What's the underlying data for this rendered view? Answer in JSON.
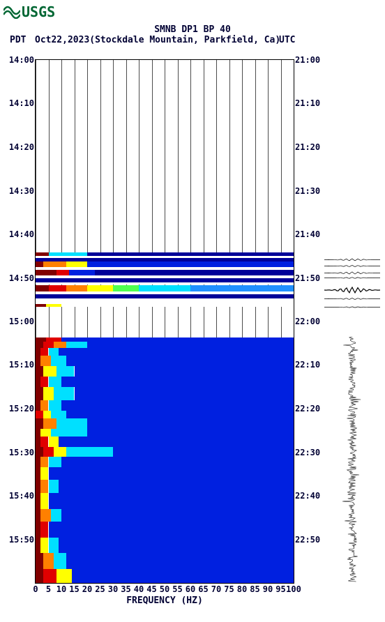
{
  "logo_text": "USGS",
  "title": "SMNB DP1 BP 40",
  "timezone_left": "PDT",
  "date": "Oct22,2023(Stockdale Mountain, Parkfield, Ca)",
  "timezone_right": "UTC",
  "xaxis_title": "FREQUENCY (HZ)",
  "plot": {
    "background_color": "#ffffff",
    "grid_color": "#000000",
    "text_color": "#000033",
    "xlim": [
      0,
      100
    ],
    "xtick_step": 5,
    "xticks": [
      "0",
      "5",
      "10",
      "15",
      "20",
      "25",
      "30",
      "35",
      "40",
      "45",
      "50",
      "55",
      "60",
      "65",
      "70",
      "75",
      "80",
      "85",
      "90",
      "95",
      "100"
    ],
    "y_left_ticks": [
      {
        "t": 0.0,
        "label": "14:00"
      },
      {
        "t": 0.0833,
        "label": "14:10"
      },
      {
        "t": 0.1667,
        "label": "14:20"
      },
      {
        "t": 0.25,
        "label": "14:30"
      },
      {
        "t": 0.3333,
        "label": "14:40"
      },
      {
        "t": 0.4167,
        "label": "14:50"
      },
      {
        "t": 0.5,
        "label": "15:00"
      },
      {
        "t": 0.5833,
        "label": "15:10"
      },
      {
        "t": 0.6667,
        "label": "15:20"
      },
      {
        "t": 0.75,
        "label": "15:30"
      },
      {
        "t": 0.8333,
        "label": "15:40"
      },
      {
        "t": 0.9167,
        "label": "15:50"
      }
    ],
    "y_right_ticks": [
      {
        "t": 0.0,
        "label": "21:00"
      },
      {
        "t": 0.0833,
        "label": "21:10"
      },
      {
        "t": 0.1667,
        "label": "21:20"
      },
      {
        "t": 0.25,
        "label": "21:30"
      },
      {
        "t": 0.3333,
        "label": "21:40"
      },
      {
        "t": 0.4167,
        "label": "21:50"
      },
      {
        "t": 0.5,
        "label": "22:00"
      },
      {
        "t": 0.5833,
        "label": "22:10"
      },
      {
        "t": 0.6667,
        "label": "22:20"
      },
      {
        "t": 0.75,
        "label": "22:30"
      },
      {
        "t": 0.8333,
        "label": "22:40"
      },
      {
        "t": 0.9167,
        "label": "22:50"
      }
    ]
  },
  "colors": {
    "darkblue": "#000099",
    "blue": "#0020e0",
    "medblue": "#0050ff",
    "lightblue": "#2090ff",
    "cyan": "#00e0ff",
    "green": "#50ff50",
    "yellow": "#ffff00",
    "orange": "#ff8000",
    "red": "#e00000",
    "darkred": "#800000",
    "white": "#ffffff"
  },
  "bands": [
    {
      "t": 0.368,
      "h": 0.007,
      "segs": [
        {
          "x": 0,
          "w": 5,
          "c": "darkred"
        },
        {
          "x": 5,
          "w": 15,
          "c": "cyan"
        },
        {
          "x": 20,
          "w": 80,
          "c": "darkblue"
        }
      ]
    },
    {
      "t": 0.375,
      "h": 0.004,
      "segs": [
        {
          "x": 0,
          "w": 100,
          "c": "white"
        }
      ]
    },
    {
      "t": 0.379,
      "h": 0.007,
      "segs": [
        {
          "x": 0,
          "w": 100,
          "c": "darkblue"
        }
      ]
    },
    {
      "t": 0.386,
      "h": 0.01,
      "segs": [
        {
          "x": 0,
          "w": 3,
          "c": "darkred"
        },
        {
          "x": 3,
          "w": 9,
          "c": "orange"
        },
        {
          "x": 12,
          "w": 8,
          "c": "yellow"
        },
        {
          "x": 20,
          "w": 80,
          "c": "blue"
        }
      ]
    },
    {
      "t": 0.396,
      "h": 0.005,
      "segs": [
        {
          "x": 0,
          "w": 100,
          "c": "white"
        }
      ]
    },
    {
      "t": 0.401,
      "h": 0.011,
      "segs": [
        {
          "x": 0,
          "w": 8,
          "c": "darkred"
        },
        {
          "x": 8,
          "w": 5,
          "c": "red"
        },
        {
          "x": 13,
          "w": 10,
          "c": "blue"
        },
        {
          "x": 23,
          "w": 77,
          "c": "darkblue"
        }
      ]
    },
    {
      "t": 0.412,
      "h": 0.005,
      "segs": [
        {
          "x": 0,
          "w": 100,
          "c": "white"
        }
      ]
    },
    {
      "t": 0.417,
      "h": 0.009,
      "segs": [
        {
          "x": 0,
          "w": 100,
          "c": "darkblue"
        }
      ]
    },
    {
      "t": 0.426,
      "h": 0.004,
      "segs": [
        {
          "x": 0,
          "w": 100,
          "c": "white"
        }
      ]
    },
    {
      "t": 0.43,
      "h": 0.012,
      "segs": [
        {
          "x": 0,
          "w": 5,
          "c": "darkred"
        },
        {
          "x": 5,
          "w": 7,
          "c": "red"
        },
        {
          "x": 12,
          "w": 8,
          "c": "orange"
        },
        {
          "x": 20,
          "w": 10,
          "c": "yellow"
        },
        {
          "x": 30,
          "w": 10,
          "c": "green"
        },
        {
          "x": 40,
          "w": 20,
          "c": "cyan"
        },
        {
          "x": 60,
          "w": 40,
          "c": "lightblue"
        }
      ]
    },
    {
      "t": 0.442,
      "h": 0.006,
      "segs": [
        {
          "x": 0,
          "w": 100,
          "c": "white"
        }
      ]
    },
    {
      "t": 0.448,
      "h": 0.008,
      "segs": [
        {
          "x": 0,
          "w": 100,
          "c": "darkblue"
        }
      ]
    },
    {
      "t": 0.456,
      "h": 0.01,
      "segs": [
        {
          "x": 0,
          "w": 100,
          "c": "white"
        }
      ]
    },
    {
      "t": 0.466,
      "h": 0.006,
      "segs": [
        {
          "x": 0,
          "w": 4,
          "c": "darkred"
        },
        {
          "x": 4,
          "w": 6,
          "c": "yellow"
        },
        {
          "x": 10,
          "w": 90,
          "c": "white"
        }
      ]
    }
  ],
  "spectro_block": {
    "t0": 0.53,
    "t1": 1.0,
    "rows": [
      {
        "t": 0.53,
        "h": 0.008,
        "segs": [
          {
            "x": 0,
            "w": 4,
            "c": "darkred"
          },
          {
            "x": 4,
            "w": 6,
            "c": "red"
          },
          {
            "x": 10,
            "w": 90,
            "c": "blue"
          }
        ]
      },
      {
        "t": 0.538,
        "h": 0.012,
        "segs": [
          {
            "x": 0,
            "w": 3,
            "c": "darkred"
          },
          {
            "x": 3,
            "w": 4,
            "c": "red"
          },
          {
            "x": 7,
            "w": 5,
            "c": "orange"
          },
          {
            "x": 12,
            "w": 8,
            "c": "cyan"
          },
          {
            "x": 20,
            "w": 80,
            "c": "blue"
          }
        ]
      },
      {
        "t": 0.55,
        "h": 0.015,
        "segs": [
          {
            "x": 0,
            "w": 2,
            "c": "darkred"
          },
          {
            "x": 2,
            "w": 3,
            "c": "red"
          },
          {
            "x": 5,
            "w": 4,
            "c": "cyan"
          },
          {
            "x": 9,
            "w": 91,
            "c": "blue"
          }
        ]
      },
      {
        "t": 0.565,
        "h": 0.02,
        "segs": [
          {
            "x": 0,
            "w": 2,
            "c": "darkred"
          },
          {
            "x": 2,
            "w": 4,
            "c": "orange"
          },
          {
            "x": 6,
            "w": 6,
            "c": "cyan"
          },
          {
            "x": 12,
            "w": 88,
            "c": "blue"
          }
        ]
      },
      {
        "t": 0.585,
        "h": 0.02,
        "segs": [
          {
            "x": 0,
            "w": 3,
            "c": "darkred"
          },
          {
            "x": 3,
            "w": 5,
            "c": "yellow"
          },
          {
            "x": 8,
            "w": 7,
            "c": "cyan"
          },
          {
            "x": 15,
            "w": 85,
            "c": "blue"
          }
        ]
      },
      {
        "t": 0.605,
        "h": 0.02,
        "segs": [
          {
            "x": 0,
            "w": 2,
            "c": "darkred"
          },
          {
            "x": 2,
            "w": 3,
            "c": "red"
          },
          {
            "x": 5,
            "w": 5,
            "c": "cyan"
          },
          {
            "x": 10,
            "w": 90,
            "c": "blue"
          }
        ]
      },
      {
        "t": 0.625,
        "h": 0.025,
        "segs": [
          {
            "x": 0,
            "w": 3,
            "c": "darkred"
          },
          {
            "x": 3,
            "w": 4,
            "c": "yellow"
          },
          {
            "x": 7,
            "w": 8,
            "c": "cyan"
          },
          {
            "x": 15,
            "w": 85,
            "c": "blue"
          }
        ]
      },
      {
        "t": 0.65,
        "h": 0.02,
        "segs": [
          {
            "x": 0,
            "w": 2,
            "c": "darkred"
          },
          {
            "x": 2,
            "w": 3,
            "c": "orange"
          },
          {
            "x": 5,
            "w": 5,
            "c": "cyan"
          },
          {
            "x": 10,
            "w": 90,
            "c": "blue"
          }
        ]
      },
      {
        "t": 0.67,
        "h": 0.015,
        "segs": [
          {
            "x": 0,
            "w": 3,
            "c": "red"
          },
          {
            "x": 3,
            "w": 3,
            "c": "yellow"
          },
          {
            "x": 6,
            "w": 6,
            "c": "cyan"
          },
          {
            "x": 12,
            "w": 88,
            "c": "blue"
          }
        ]
      },
      {
        "t": 0.685,
        "h": 0.02,
        "segs": [
          {
            "x": 0,
            "w": 3,
            "c": "darkred"
          },
          {
            "x": 3,
            "w": 5,
            "c": "orange"
          },
          {
            "x": 8,
            "w": 12,
            "c": "cyan"
          },
          {
            "x": 20,
            "w": 80,
            "c": "blue"
          }
        ]
      },
      {
        "t": 0.705,
        "h": 0.015,
        "segs": [
          {
            "x": 0,
            "w": 2,
            "c": "darkred"
          },
          {
            "x": 2,
            "w": 4,
            "c": "yellow"
          },
          {
            "x": 6,
            "w": 14,
            "c": "cyan"
          },
          {
            "x": 20,
            "w": 80,
            "c": "blue"
          }
        ]
      },
      {
        "t": 0.72,
        "h": 0.02,
        "segs": [
          {
            "x": 0,
            "w": 2,
            "c": "darkred"
          },
          {
            "x": 2,
            "w": 3,
            "c": "red"
          },
          {
            "x": 5,
            "w": 4,
            "c": "yellow"
          },
          {
            "x": 9,
            "w": 91,
            "c": "blue"
          }
        ]
      },
      {
        "t": 0.74,
        "h": 0.018,
        "segs": [
          {
            "x": 0,
            "w": 3,
            "c": "darkred"
          },
          {
            "x": 3,
            "w": 4,
            "c": "red"
          },
          {
            "x": 7,
            "w": 5,
            "c": "yellow"
          },
          {
            "x": 12,
            "w": 18,
            "c": "cyan"
          },
          {
            "x": 30,
            "w": 70,
            "c": "blue"
          }
        ]
      },
      {
        "t": 0.758,
        "h": 0.02,
        "segs": [
          {
            "x": 0,
            "w": 2,
            "c": "darkred"
          },
          {
            "x": 2,
            "w": 3,
            "c": "orange"
          },
          {
            "x": 5,
            "w": 5,
            "c": "cyan"
          },
          {
            "x": 10,
            "w": 90,
            "c": "blue"
          }
        ]
      },
      {
        "t": 0.778,
        "h": 0.025,
        "segs": [
          {
            "x": 0,
            "w": 2,
            "c": "darkred"
          },
          {
            "x": 2,
            "w": 3,
            "c": "yellow"
          },
          {
            "x": 5,
            "w": 95,
            "c": "blue"
          }
        ]
      },
      {
        "t": 0.803,
        "h": 0.025,
        "segs": [
          {
            "x": 0,
            "w": 2,
            "c": "darkred"
          },
          {
            "x": 2,
            "w": 3,
            "c": "orange"
          },
          {
            "x": 5,
            "w": 4,
            "c": "cyan"
          },
          {
            "x": 9,
            "w": 91,
            "c": "blue"
          }
        ]
      },
      {
        "t": 0.828,
        "h": 0.03,
        "segs": [
          {
            "x": 0,
            "w": 2,
            "c": "darkred"
          },
          {
            "x": 2,
            "w": 3,
            "c": "yellow"
          },
          {
            "x": 5,
            "w": 95,
            "c": "blue"
          }
        ]
      },
      {
        "t": 0.858,
        "h": 0.025,
        "segs": [
          {
            "x": 0,
            "w": 2,
            "c": "darkred"
          },
          {
            "x": 2,
            "w": 4,
            "c": "orange"
          },
          {
            "x": 6,
            "w": 4,
            "c": "cyan"
          },
          {
            "x": 10,
            "w": 90,
            "c": "blue"
          }
        ]
      },
      {
        "t": 0.883,
        "h": 0.03,
        "segs": [
          {
            "x": 0,
            "w": 2,
            "c": "darkred"
          },
          {
            "x": 2,
            "w": 3,
            "c": "red"
          },
          {
            "x": 5,
            "w": 95,
            "c": "blue"
          }
        ]
      },
      {
        "t": 0.913,
        "h": 0.03,
        "segs": [
          {
            "x": 0,
            "w": 2,
            "c": "darkred"
          },
          {
            "x": 2,
            "w": 3,
            "c": "yellow"
          },
          {
            "x": 5,
            "w": 4,
            "c": "cyan"
          },
          {
            "x": 9,
            "w": 91,
            "c": "blue"
          }
        ]
      },
      {
        "t": 0.943,
        "h": 0.03,
        "segs": [
          {
            "x": 0,
            "w": 3,
            "c": "darkred"
          },
          {
            "x": 3,
            "w": 4,
            "c": "orange"
          },
          {
            "x": 7,
            "w": 5,
            "c": "cyan"
          },
          {
            "x": 12,
            "w": 88,
            "c": "blue"
          }
        ]
      },
      {
        "t": 0.973,
        "h": 0.027,
        "segs": [
          {
            "x": 0,
            "w": 3,
            "c": "darkred"
          },
          {
            "x": 3,
            "w": 5,
            "c": "red"
          },
          {
            "x": 8,
            "w": 6,
            "c": "yellow"
          },
          {
            "x": 14,
            "w": 86,
            "c": "blue"
          }
        ]
      }
    ]
  },
  "waveforms": [
    {
      "t": 0.38,
      "amp": 0.7,
      "width": 50,
      "thin": true
    },
    {
      "t": 0.392,
      "amp": 0.5,
      "width": 40,
      "thin": true
    },
    {
      "t": 0.405,
      "amp": 0.8,
      "width": 55,
      "thin": true
    },
    {
      "t": 0.415,
      "amp": 0.4,
      "width": 35,
      "thin": true
    },
    {
      "t": 0.435,
      "amp": 1.0,
      "width": 70,
      "thick": true
    },
    {
      "t": 0.455,
      "amp": 0.5,
      "width": 40,
      "thin": true
    },
    {
      "t": 0.47,
      "amp": 0.3,
      "width": 30,
      "thin": true
    }
  ],
  "waveform_block": {
    "t0": 0.53,
    "t1": 1.0
  }
}
